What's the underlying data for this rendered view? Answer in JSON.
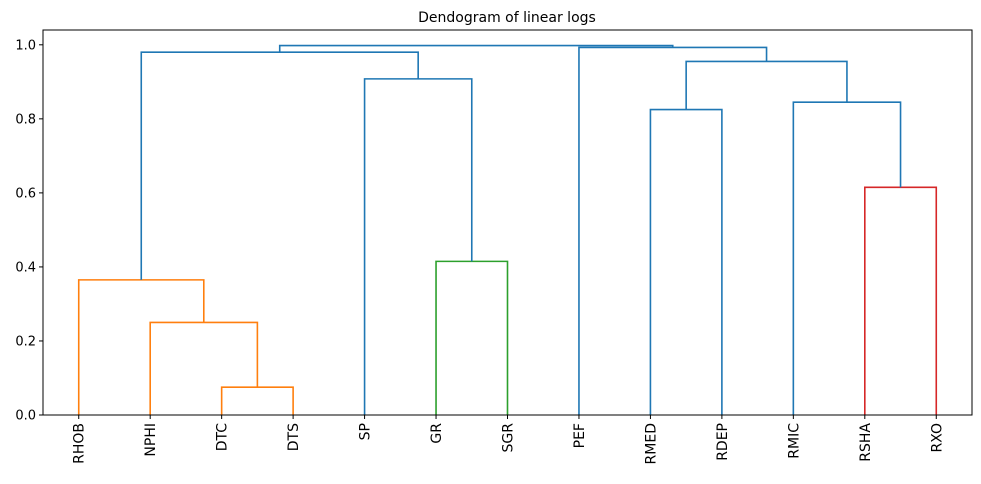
{
  "chart_data": {
    "type": "dendrogram",
    "title": "Dendogram of linear logs",
    "xlabel": "",
    "ylabel": "",
    "ylim": [
      0,
      1.04
    ],
    "yticks": [
      0.0,
      0.2,
      0.4,
      0.6,
      0.8,
      1.0
    ],
    "ytick_labels": [
      "0.0",
      "0.2",
      "0.4",
      "0.6",
      "0.8",
      "1.0"
    ],
    "leaves": [
      "RHOB",
      "NPHI",
      "DTC",
      "DTS",
      "SP",
      "GR",
      "SGR",
      "PEF",
      "RMED",
      "RDEP",
      "RMIC",
      "RSHA",
      "RXO"
    ],
    "grid": false,
    "colors": {
      "orange": "#ff7f0e",
      "green": "#2ca02c",
      "red": "#d62728",
      "blue": "#1f77b4"
    },
    "links": [
      {
        "left": "DTC",
        "right": "DTS",
        "height": 0.075,
        "color": "orange"
      },
      {
        "left": "NPHI",
        "right": "DTC+DTS",
        "height": 0.25,
        "color": "orange"
      },
      {
        "left": "RHOB",
        "right": "NPHI+DTC+DTS",
        "height": 0.365,
        "color": "orange"
      },
      {
        "left": "GR",
        "right": "SGR",
        "height": 0.415,
        "color": "green"
      },
      {
        "left": "RSHA",
        "right": "RXO",
        "height": 0.615,
        "color": "red"
      },
      {
        "left": "RMED",
        "right": "RDEP",
        "height": 0.825,
        "color": "blue"
      },
      {
        "left": "RMIC",
        "right": "RSHA+RXO",
        "height": 0.845,
        "color": "blue"
      },
      {
        "left": "SP",
        "right": "GR+SGR",
        "height": 0.908,
        "color": "blue"
      },
      {
        "left": "RMED+RDEP",
        "right": "RMIC+RSHA+RXO",
        "height": 0.955,
        "color": "blue"
      },
      {
        "left": "RHOB+NPHI+DTC+DTS",
        "right": "SP+GR+SGR",
        "height": 0.98,
        "color": "blue"
      },
      {
        "left": "PEF",
        "right": "RMED+RDEP+RMIC+RSHA+RXO",
        "height": 0.993,
        "color": "blue"
      },
      {
        "left": "RHOB+NPHI+DTC+DTS+SP+GR+SGR",
        "right": "PEF+RMED+RDEP+RMIC+RSHA+RXO",
        "height": 0.998,
        "color": "blue"
      }
    ]
  }
}
